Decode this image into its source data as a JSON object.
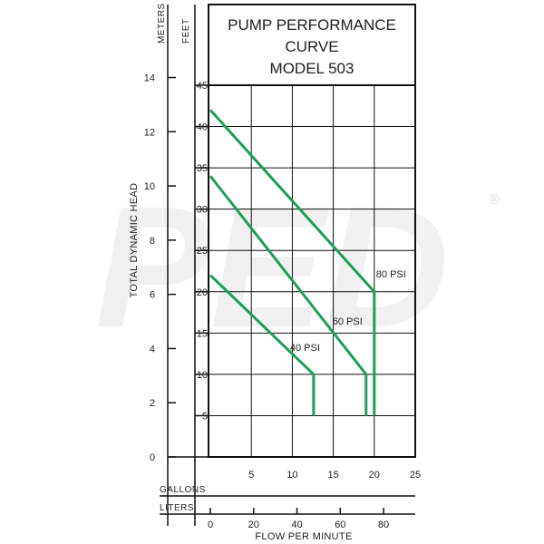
{
  "chart_data": {
    "type": "line",
    "title_lines": [
      "PUMP PERFORMANCE",
      "CURVE",
      "MODEL 503"
    ],
    "xlabel": "FLOW PER MINUTE",
    "ylabel": "TOTAL DYNAMIC HEAD",
    "x_unit_gallons": "GALLONS",
    "x_unit_liters": "LITERS",
    "y_unit_feet": "FEET",
    "y_unit_meters": "METERS",
    "xlim": [
      0,
      25
    ],
    "ylim": [
      0,
      45
    ],
    "gallon_ticks": [
      "5",
      "10",
      "15",
      "20",
      "25"
    ],
    "liter_ticks": [
      "0",
      "20",
      "40",
      "60",
      "80"
    ],
    "feet_ticks": [
      "5",
      "10",
      "15",
      "20",
      "25",
      "30",
      "35",
      "40",
      "45"
    ],
    "meter_ticks": [
      "0",
      "2",
      "4",
      "6",
      "8",
      "10",
      "12",
      "14"
    ],
    "grid": true,
    "series_color": "#1e9e5a",
    "series": [
      {
        "name": "40 PSI",
        "points": [
          [
            0,
            22
          ],
          [
            12.6,
            10
          ],
          [
            12.6,
            5
          ]
        ]
      },
      {
        "name": "60 PSI",
        "points": [
          [
            0,
            34
          ],
          [
            19,
            10
          ],
          [
            19,
            5
          ]
        ]
      },
      {
        "name": "80 PSI",
        "points": [
          [
            0,
            42
          ],
          [
            20,
            20
          ],
          [
            20,
            5
          ]
        ]
      }
    ]
  },
  "watermark": {
    "text": "PED",
    "registered": "®"
  }
}
